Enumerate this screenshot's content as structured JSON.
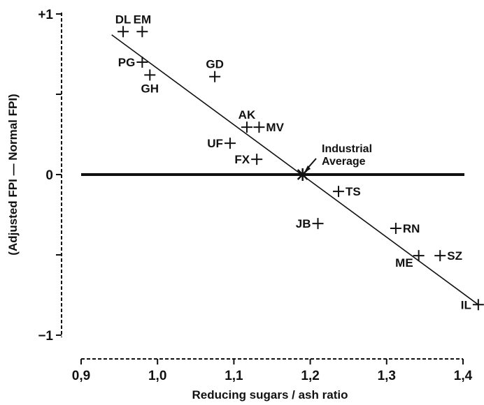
{
  "chart_data": {
    "type": "scatter",
    "xlabel": "Reducing sugars / ash ratio",
    "ylabel": "(Adjusted FPI — Normal FPI)",
    "xlim": [
      0.9,
      1.4
    ],
    "ylim": [
      -1,
      1
    ],
    "x_ticks": [
      {
        "value": 0.9,
        "label": "0,9"
      },
      {
        "value": 1.0,
        "label": "1,0"
      },
      {
        "value": 1.1,
        "label": "1,1"
      },
      {
        "value": 1.2,
        "label": "1,2"
      },
      {
        "value": 1.3,
        "label": "1,3"
      },
      {
        "value": 1.4,
        "label": "1,4"
      }
    ],
    "y_ticks": [
      {
        "value": 1,
        "label": "+1"
      },
      {
        "value": 0.5,
        "label": ""
      },
      {
        "value": 0,
        "label": "0"
      },
      {
        "value": -0.5,
        "label": ""
      },
      {
        "value": -1,
        "label": "−1"
      }
    ],
    "points": [
      {
        "label": "DL",
        "x": 0.955,
        "y": 0.89,
        "label_pos": "above"
      },
      {
        "label": "EM",
        "x": 0.98,
        "y": 0.89,
        "label_pos": "above"
      },
      {
        "label": "PG",
        "x": 0.98,
        "y": 0.7,
        "label_pos": "left"
      },
      {
        "label": "GH",
        "x": 0.99,
        "y": 0.62,
        "label_pos": "below"
      },
      {
        "label": "GD",
        "x": 1.075,
        "y": 0.61,
        "label_pos": "above"
      },
      {
        "label": "AK",
        "x": 1.117,
        "y": 0.295,
        "label_pos": "above"
      },
      {
        "label": "MV",
        "x": 1.133,
        "y": 0.295,
        "label_pos": "right"
      },
      {
        "label": "UF",
        "x": 1.095,
        "y": 0.195,
        "label_pos": "left"
      },
      {
        "label": "FX",
        "x": 1.13,
        "y": 0.095,
        "label_pos": "left"
      },
      {
        "label": "TS",
        "x": 1.237,
        "y": -0.105,
        "label_pos": "right"
      },
      {
        "label": "JB",
        "x": 1.21,
        "y": -0.305,
        "label_pos": "left"
      },
      {
        "label": "RN",
        "x": 1.312,
        "y": -0.335,
        "label_pos": "right"
      },
      {
        "label": "ME",
        "x": 1.342,
        "y": -0.505,
        "label_pos": "below-left"
      },
      {
        "label": "SZ",
        "x": 1.37,
        "y": -0.505,
        "label_pos": "right"
      },
      {
        "label": "IL",
        "x": 1.42,
        "y": -0.81,
        "label_pos": "left"
      }
    ],
    "industrial_average": {
      "x": 1.19,
      "y": 0,
      "label_line1": "Industrial",
      "label_line2": "Average"
    },
    "regression_line": {
      "x": [
        0.94,
        1.42
      ],
      "y": [
        0.87,
        -0.81
      ]
    },
    "reference_line_y": 0,
    "grid": false,
    "legend": "none"
  }
}
